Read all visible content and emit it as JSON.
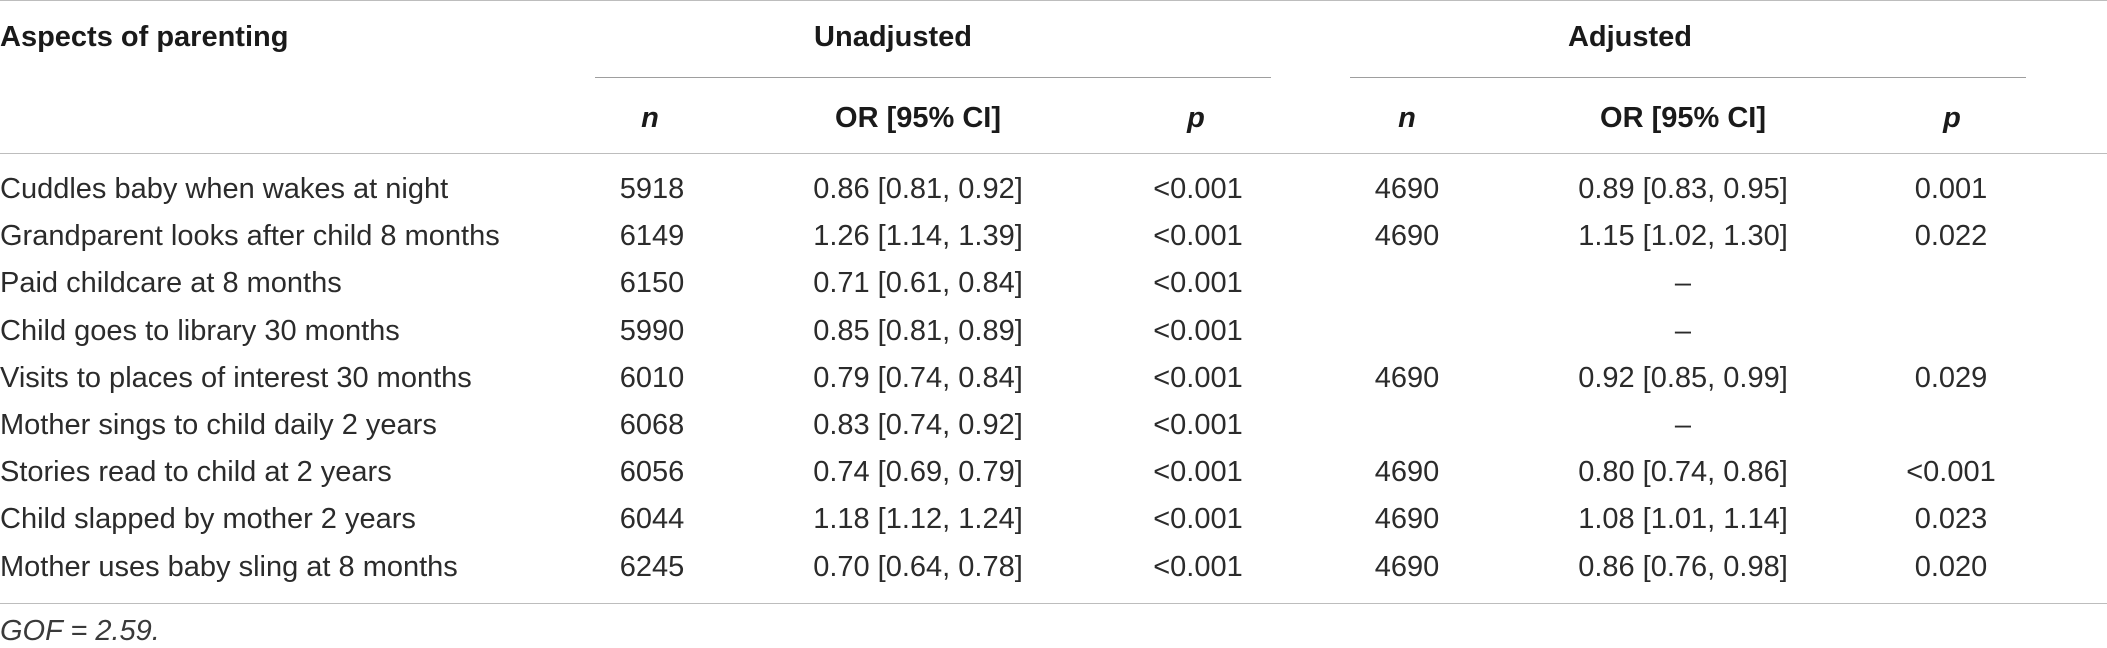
{
  "table": {
    "header": {
      "row_label": "Aspects of parenting",
      "group_unadjusted": "Unadjusted",
      "group_adjusted": "Adjusted",
      "sub_headers": [
        "n",
        "OR [95% CI]",
        "p",
        "n",
        "OR [95% CI]",
        "p"
      ]
    },
    "rows": [
      {
        "label": "Cuddles baby when wakes at night",
        "u_n": "5918",
        "u_or": "0.86 [0.81, 0.92]",
        "u_p": "<0.001",
        "a_n": "4690",
        "a_or": "0.89 [0.83, 0.95]",
        "a_p": "0.001"
      },
      {
        "label": "Grandparent looks after child 8 months",
        "u_n": "6149",
        "u_or": "1.26 [1.14, 1.39]",
        "u_p": "<0.001",
        "a_n": "4690",
        "a_or": "1.15 [1.02, 1.30]",
        "a_p": "0.022"
      },
      {
        "label": "Paid childcare at 8 months",
        "u_n": "6150",
        "u_or": "0.71 [0.61, 0.84]",
        "u_p": "<0.001",
        "a_n": "",
        "a_or": "–",
        "a_p": ""
      },
      {
        "label": "Child goes to library 30 months",
        "u_n": "5990",
        "u_or": "0.85 [0.81, 0.89]",
        "u_p": "<0.001",
        "a_n": "",
        "a_or": "–",
        "a_p": ""
      },
      {
        "label": "Visits to places of interest 30 months",
        "u_n": "6010",
        "u_or": "0.79 [0.74, 0.84]",
        "u_p": "<0.001",
        "a_n": "4690",
        "a_or": "0.92 [0.85, 0.99]",
        "a_p": "0.029"
      },
      {
        "label": "Mother sings to child daily 2 years",
        "u_n": "6068",
        "u_or": "0.83 [0.74, 0.92]",
        "u_p": "<0.001",
        "a_n": "",
        "a_or": "–",
        "a_p": ""
      },
      {
        "label": "Stories read to child at 2 years",
        "u_n": "6056",
        "u_or": "0.74 [0.69, 0.79]",
        "u_p": "<0.001",
        "a_n": "4690",
        "a_or": "0.80 [0.74, 0.86]",
        "a_p": "<0.001"
      },
      {
        "label": "Child slapped by mother 2 years",
        "u_n": "6044",
        "u_or": "1.18 [1.12, 1.24]",
        "u_p": "<0.001",
        "a_n": "4690",
        "a_or": "1.08 [1.01, 1.14]",
        "a_p": "0.023"
      },
      {
        "label": "Mother uses baby sling at 8 months",
        "u_n": "6245",
        "u_or": "0.70 [0.64, 0.78]",
        "u_p": "<0.001",
        "a_n": "4690",
        "a_or": "0.86 [0.76, 0.98]",
        "a_p": "0.020"
      }
    ],
    "footnote": "GOF = 2.59."
  }
}
